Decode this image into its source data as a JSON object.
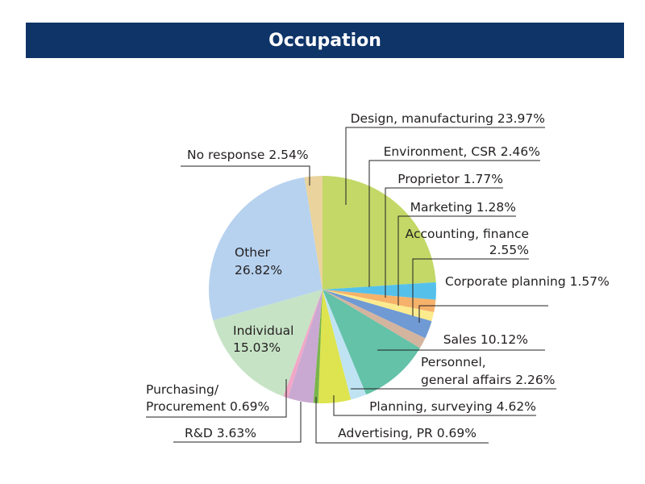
{
  "chart_data": {
    "type": "pie",
    "title": "Occupation",
    "start_angle_deg": 0,
    "direction": "clockwise",
    "slices": [
      {
        "name": "Design, manufacturing",
        "value": 23.97,
        "pct_label": "23.97%",
        "color": "#c3d867"
      },
      {
        "name": "Environment, CSR",
        "value": 2.46,
        "pct_label": "2.46%",
        "color": "#55c1eb"
      },
      {
        "name": "Proprietor",
        "value": 1.77,
        "pct_label": "1.77%",
        "color": "#f6b26a"
      },
      {
        "name": "Marketing",
        "value": 1.28,
        "pct_label": "1.28%",
        "color": "#fbeb8e"
      },
      {
        "name": "Accounting, finance",
        "value": 2.55,
        "pct_label": "2.55%",
        "color": "#6f9ad4"
      },
      {
        "name": "Corporate planning",
        "value": 1.57,
        "pct_label": "1.57%",
        "color": "#d3b49e"
      },
      {
        "name": "Sales",
        "value": 10.12,
        "pct_label": "10.12%",
        "color": "#63c2a8"
      },
      {
        "name": "Personnel, general affairs",
        "value": 2.26,
        "pct_label": "2.26%",
        "color": "#bfe3f3"
      },
      {
        "name": "Planning, surveying",
        "value": 4.62,
        "pct_label": "4.62%",
        "color": "#dde44f"
      },
      {
        "name": "Advertising, PR",
        "value": 0.69,
        "pct_label": "0.69%",
        "color": "#7ab54c"
      },
      {
        "name": "R&D",
        "value": 3.63,
        "pct_label": "3.63%",
        "color": "#c9a9d2"
      },
      {
        "name": "Purchasing/ Procurement",
        "value": 0.69,
        "pct_label": "0.69%",
        "color": "#f2a7c6"
      },
      {
        "name": "Individual",
        "value": 15.03,
        "pct_label": "15.03%",
        "color": "#c7e3c6"
      },
      {
        "name": "Other",
        "value": 26.82,
        "pct_label": "26.82%",
        "color": "#b7d2ef"
      },
      {
        "name": "No response",
        "value": 2.54,
        "pct_label": "2.54%",
        "color": "#ead39c"
      }
    ]
  }
}
